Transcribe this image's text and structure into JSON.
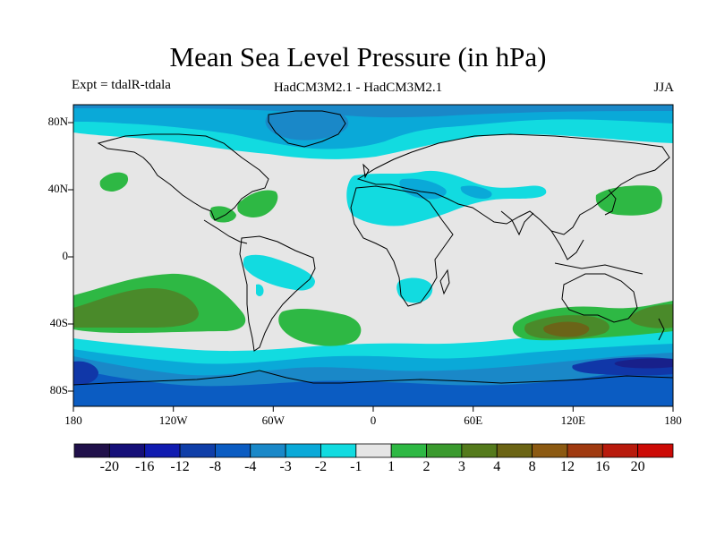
{
  "title": "Mean Sea Level Pressure (in hPa)",
  "experiment": "Expt = tdalR-tdala",
  "model_comparison": "HadCM3M2.1 - HadCM3M2.1",
  "season": "JJA",
  "lat_labels": [
    "80N",
    "40N",
    "0",
    "40S",
    "80S"
  ],
  "lon_labels": [
    "180",
    "120W",
    "60W",
    "0",
    "60E",
    "120E",
    "180"
  ],
  "colorbar": {
    "colors": [
      "#20104a",
      "#150f78",
      "#101bb0",
      "#0f3ea8",
      "#0b5cc2",
      "#1a88c8",
      "#0aa9d8",
      "#12dbe0",
      "#e6e6e6",
      "#2eb844",
      "#3a9a2e",
      "#547a1c",
      "#6b6414",
      "#8c5a12",
      "#a03a10",
      "#b81a0c",
      "#cc0a06"
    ],
    "labels": [
      "-20",
      "-16",
      "-12",
      "-8",
      "-4",
      "-3",
      "-2",
      "-1",
      "1",
      "2",
      "3",
      "4",
      "8",
      "12",
      "16",
      "20"
    ]
  },
  "legend_colors": {
    "background": "#e6e6e6",
    "neg1": "#12dbe0",
    "neg2": "#0aa9d8",
    "neg3": "#1a88c8",
    "neg4": "#0b5cc2",
    "neg8": "#1037a8",
    "neg12": "#18208a",
    "pos1": "#2eb844",
    "pos2": "#4a8a2a",
    "pos3": "#6b6418",
    "pos4": "#7d5414"
  }
}
